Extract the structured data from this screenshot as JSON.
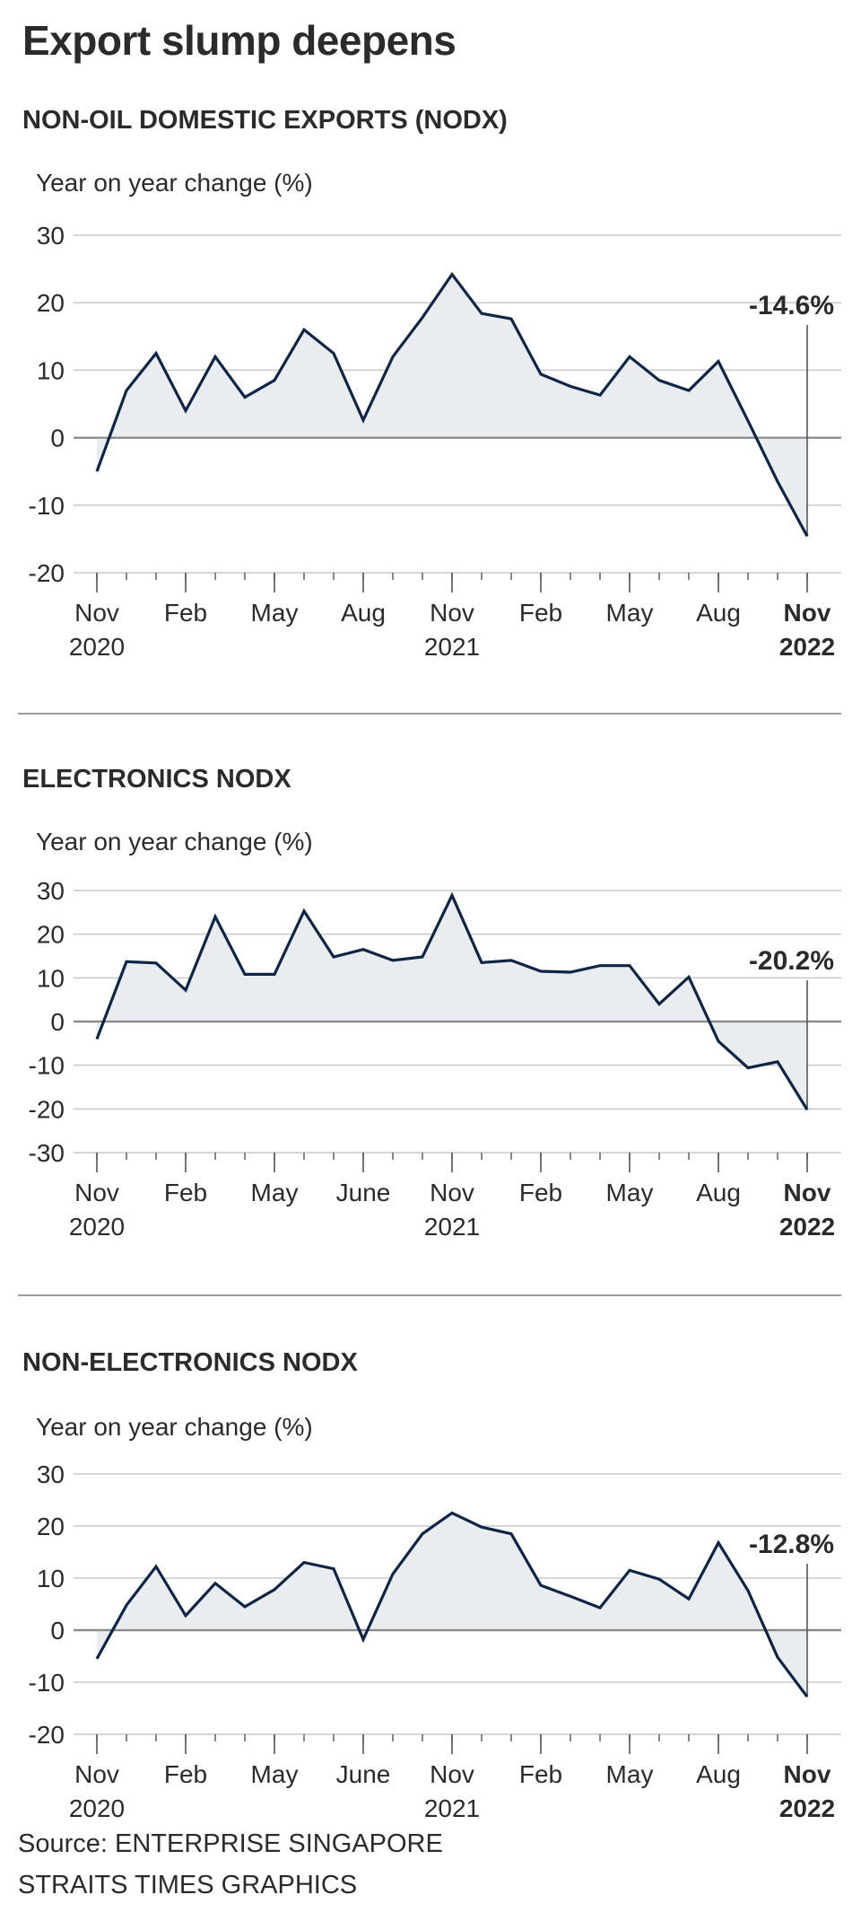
{
  "title": "Export slump deepens",
  "source_line1": "Source: ENTERPRISE SINGAPORE",
  "source_line2": "STRAITS TIMES GRAPHICS",
  "colors": {
    "line": "#0f2546",
    "fill": "#e9edef",
    "grid": "#c8c8c8",
    "zero": "#8a8a8a",
    "text": "#2b2b2b"
  },
  "chart_data": [
    {
      "type": "area",
      "title": "NON-OIL DOMESTIC EXPORTS (NODX)",
      "ylabel": "Year on year change (%)",
      "ylim": [
        -20,
        30
      ],
      "yticks": [
        "30",
        "20",
        "10",
        "0",
        "-10",
        "-20"
      ],
      "ytick_values": [
        30,
        20,
        10,
        0,
        -10,
        -20
      ],
      "x_month_index": [
        0,
        1,
        2,
        3,
        4,
        5,
        6,
        7,
        8,
        9,
        10,
        11,
        12,
        13,
        14,
        15,
        16,
        17,
        18,
        19,
        20,
        21,
        22,
        23,
        24
      ],
      "values": [
        -5,
        7,
        12.5,
        4,
        12,
        6,
        8.5,
        16,
        12.5,
        2.6,
        12,
        17.8,
        24.2,
        18.4,
        17.6,
        9.4,
        7.6,
        6.3,
        12,
        8.5,
        7,
        11.3,
        2.5,
        -6.5,
        -14.6
      ],
      "xticks": [
        {
          "label": "Nov",
          "sub": "2020",
          "month_index": 0,
          "bold": false
        },
        {
          "label": "Feb",
          "sub": "",
          "month_index": 3,
          "bold": false
        },
        {
          "label": "May",
          "sub": "",
          "month_index": 6,
          "bold": false
        },
        {
          "label": "Aug",
          "sub": "",
          "month_index": 9,
          "bold": false
        },
        {
          "label": "Nov",
          "sub": "2021",
          "month_index": 12,
          "bold": false
        },
        {
          "label": "Feb",
          "sub": "",
          "month_index": 15,
          "bold": false
        },
        {
          "label": "May",
          "sub": "",
          "month_index": 18,
          "bold": false
        },
        {
          "label": "Aug",
          "sub": "",
          "month_index": 21,
          "bold": false
        },
        {
          "label": "Nov",
          "sub": "2022",
          "month_index": 24,
          "bold": true
        }
      ],
      "annotation": "-14.6%"
    },
    {
      "type": "area",
      "title": "ELECTRONICS NODX",
      "ylabel": "Year on year change (%)",
      "ylim": [
        -30,
        30
      ],
      "yticks": [
        "30",
        "20",
        "10",
        "0",
        "-10",
        "-20",
        "-30"
      ],
      "ytick_values": [
        30,
        20,
        10,
        0,
        -10,
        -20,
        -30
      ],
      "x_month_index": [
        0,
        1,
        2,
        3,
        4,
        5,
        6,
        7,
        8,
        9,
        10,
        11,
        12,
        13,
        14,
        15,
        16,
        17,
        18,
        19,
        20,
        21,
        22,
        23,
        24
      ],
      "values": [
        -4,
        13.7,
        13.4,
        7.2,
        24,
        10.8,
        10.8,
        25.3,
        14.8,
        16.5,
        14,
        14.8,
        28.9,
        13.5,
        14,
        11.5,
        11.3,
        12.8,
        12.8,
        4,
        10.2,
        -4.5,
        -10.6,
        -9.2,
        -20.2
      ],
      "xticks": [
        {
          "label": "Nov",
          "sub": "2020",
          "month_index": 0,
          "bold": false
        },
        {
          "label": "Feb",
          "sub": "",
          "month_index": 3,
          "bold": false
        },
        {
          "label": "May",
          "sub": "",
          "month_index": 6,
          "bold": false
        },
        {
          "label": "June",
          "sub": "",
          "month_index": 9,
          "bold": false
        },
        {
          "label": "Nov",
          "sub": "2021",
          "month_index": 12,
          "bold": false
        },
        {
          "label": "Feb",
          "sub": "",
          "month_index": 15,
          "bold": false
        },
        {
          "label": "May",
          "sub": "",
          "month_index": 18,
          "bold": false
        },
        {
          "label": "Aug",
          "sub": "",
          "month_index": 21,
          "bold": false
        },
        {
          "label": "Nov",
          "sub": "2022",
          "month_index": 24,
          "bold": true
        }
      ],
      "annotation": "-20.2%"
    },
    {
      "type": "area",
      "title": "NON-ELECTRONICS NODX",
      "ylabel": "Year on year change (%)",
      "ylim": [
        -20,
        30
      ],
      "yticks": [
        "30",
        "20",
        "10",
        "0",
        "-10",
        "-20"
      ],
      "ytick_values": [
        30,
        20,
        10,
        0,
        -10,
        -20
      ],
      "x_month_index": [
        0,
        1,
        2,
        3,
        4,
        5,
        6,
        7,
        8,
        9,
        10,
        11,
        12,
        13,
        14,
        15,
        16,
        17,
        18,
        19,
        20,
        21,
        22,
        23,
        24
      ],
      "values": [
        -5.5,
        4.8,
        12.2,
        2.8,
        9,
        4.5,
        7.8,
        13,
        11.8,
        -1.8,
        10.8,
        18.5,
        22.5,
        19.8,
        18.5,
        8.6,
        6.5,
        4.3,
        11.5,
        9.8,
        6,
        16.8,
        7.6,
        -5.2,
        -12.8
      ],
      "xticks": [
        {
          "label": "Nov",
          "sub": "2020",
          "month_index": 0,
          "bold": false
        },
        {
          "label": "Feb",
          "sub": "",
          "month_index": 3,
          "bold": false
        },
        {
          "label": "May",
          "sub": "",
          "month_index": 6,
          "bold": false
        },
        {
          "label": "June",
          "sub": "",
          "month_index": 9,
          "bold": false
        },
        {
          "label": "Nov",
          "sub": "2021",
          "month_index": 12,
          "bold": false
        },
        {
          "label": "Feb",
          "sub": "",
          "month_index": 15,
          "bold": false
        },
        {
          "label": "May",
          "sub": "",
          "month_index": 18,
          "bold": false
        },
        {
          "label": "Aug",
          "sub": "",
          "month_index": 21,
          "bold": false
        },
        {
          "label": "Nov",
          "sub": "2022",
          "month_index": 24,
          "bold": true
        }
      ],
      "annotation": "-12.8%"
    }
  ]
}
